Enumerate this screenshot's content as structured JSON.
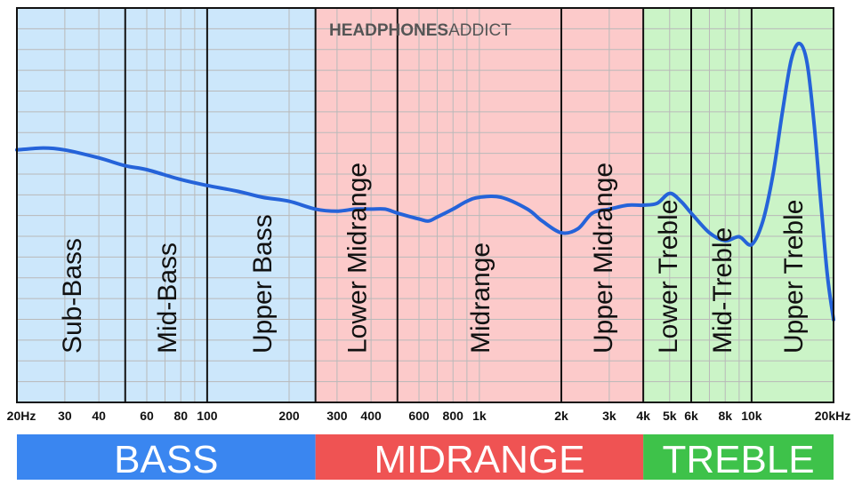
{
  "logo": {
    "primary": "HEADPHONES",
    "secondary": "ADDICT"
  },
  "chart_data": {
    "type": "line",
    "title": "",
    "xlabel": "",
    "ylabel": "",
    "x_scale": "log",
    "xlim": [
      20,
      20000
    ],
    "ylim": [
      0,
      1
    ],
    "grid": true,
    "x_tick_labels": [
      {
        "value": 20,
        "label": "20Hz"
      },
      {
        "value": 30,
        "label": "30"
      },
      {
        "value": 40,
        "label": "40"
      },
      {
        "value": 60,
        "label": "60"
      },
      {
        "value": 80,
        "label": "80"
      },
      {
        "value": 100,
        "label": "100"
      },
      {
        "value": 200,
        "label": "200"
      },
      {
        "value": 300,
        "label": "300"
      },
      {
        "value": 400,
        "label": "400"
      },
      {
        "value": 600,
        "label": "600"
      },
      {
        "value": 800,
        "label": "800"
      },
      {
        "value": 1000,
        "label": "1k"
      },
      {
        "value": 2000,
        "label": "2k"
      },
      {
        "value": 3000,
        "label": "3k"
      },
      {
        "value": 4000,
        "label": "4k"
      },
      {
        "value": 5000,
        "label": "5k"
      },
      {
        "value": 6000,
        "label": "6k"
      },
      {
        "value": 8000,
        "label": "8k"
      },
      {
        "value": 10000,
        "label": "10k"
      },
      {
        "value": 20000,
        "label": "20kHz"
      }
    ],
    "bands": [
      {
        "label": "Sub-Bass",
        "from": 20,
        "to": 50,
        "color": "#cce7fb"
      },
      {
        "label": "Mid-Bass",
        "from": 50,
        "to": 100,
        "color": "#cce7fb"
      },
      {
        "label": "Upper Bass",
        "from": 100,
        "to": 250,
        "color": "#cce7fb"
      },
      {
        "label": "Lower Midrange",
        "from": 250,
        "to": 500,
        "color": "#fccaca"
      },
      {
        "label": "Midrange",
        "from": 500,
        "to": 2000,
        "color": "#fccaca"
      },
      {
        "label": "Upper Midrange",
        "from": 2000,
        "to": 4000,
        "color": "#fccaca"
      },
      {
        "label": "Lower Treble",
        "from": 4000,
        "to": 6000,
        "color": "#cbf4c7"
      },
      {
        "label": "Mid-Treble",
        "from": 6000,
        "to": 10000,
        "color": "#cbf4c7"
      },
      {
        "label": "Upper Treble",
        "from": 10000,
        "to": 20000,
        "color": "#cbf4c7"
      }
    ],
    "categories": [
      {
        "label": "BASS",
        "from": 20,
        "to": 250,
        "color": "#3a86f0"
      },
      {
        "label": "MIDRANGE",
        "from": 250,
        "to": 4000,
        "color": "#ef5353"
      },
      {
        "label": "TREBLE",
        "from": 4000,
        "to": 20000,
        "color": "#3ec24a"
      }
    ],
    "series": [
      {
        "color": "#2563d9",
        "x": [
          20,
          25,
          30,
          40,
          50,
          60,
          80,
          100,
          130,
          160,
          200,
          250,
          300,
          350,
          400,
          450,
          500,
          600,
          650,
          700,
          800,
          900,
          1000,
          1200,
          1500,
          1700,
          2000,
          2300,
          2600,
          3000,
          3500,
          4000,
          4500,
          5000,
          5500,
          6000,
          7000,
          8000,
          9000,
          10000,
          11000,
          12000,
          13000,
          14000,
          15000,
          16000,
          17000,
          18000,
          19000,
          20000
        ],
        "y": [
          0.64,
          0.645,
          0.64,
          0.62,
          0.6,
          0.59,
          0.565,
          0.55,
          0.535,
          0.52,
          0.51,
          0.49,
          0.485,
          0.49,
          0.49,
          0.49,
          0.48,
          0.465,
          0.46,
          0.47,
          0.49,
          0.51,
          0.52,
          0.52,
          0.49,
          0.46,
          0.43,
          0.44,
          0.48,
          0.49,
          0.5,
          0.5,
          0.505,
          0.53,
          0.51,
          0.48,
          0.43,
          0.41,
          0.42,
          0.4,
          0.46,
          0.58,
          0.74,
          0.87,
          0.91,
          0.86,
          0.7,
          0.5,
          0.32,
          0.21
        ]
      }
    ]
  },
  "colors": {
    "frame": "#111111",
    "grid": "#b9b9b9",
    "label_text": "#111111",
    "category_text": "#ffffff"
  }
}
